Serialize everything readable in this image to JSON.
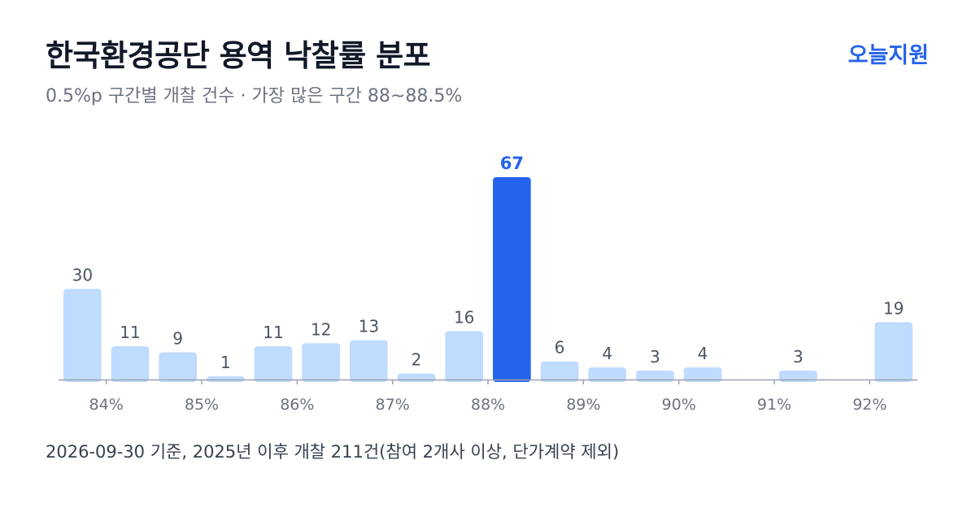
{
  "header": {
    "title": "한국환경공단 용역 낙찰률 분포",
    "brand": "오늘지원",
    "subtitle": "0.5%p 구간별 개찰 건수 · 가장 많은 구간 88~88.5%"
  },
  "footnote": "2026-09-30 기준, 2025년 이후 개찰 211건(참여 2개사 이상, 단가계약 제외)",
  "colors": {
    "bar": "#bfdbfe",
    "highlight": "#2563eb",
    "brand": "#2563eb",
    "axis": "#9ca3af",
    "tick_text": "#6b7280",
    "value_text": "#4b5563"
  },
  "chart_data": {
    "type": "bar",
    "bins": [
      {
        "start": 83.5,
        "value": 30
      },
      {
        "start": 84.0,
        "value": 11
      },
      {
        "start": 84.5,
        "value": 9
      },
      {
        "start": 85.0,
        "value": 1
      },
      {
        "start": 85.5,
        "value": 11
      },
      {
        "start": 86.0,
        "value": 12
      },
      {
        "start": 86.5,
        "value": 13
      },
      {
        "start": 87.0,
        "value": 2
      },
      {
        "start": 87.5,
        "value": 16
      },
      {
        "start": 88.0,
        "value": 67,
        "highlight": true
      },
      {
        "start": 88.5,
        "value": 6
      },
      {
        "start": 89.0,
        "value": 4
      },
      {
        "start": 89.5,
        "value": 3
      },
      {
        "start": 90.0,
        "value": 4
      },
      {
        "start": 90.5,
        "value": 0
      },
      {
        "start": 91.0,
        "value": 3
      },
      {
        "start": 91.5,
        "value": 0
      },
      {
        "start": 92.0,
        "value": 19
      }
    ],
    "bin_width": 0.5,
    "x_ticks": [
      84,
      85,
      86,
      87,
      88,
      89,
      90,
      91,
      92
    ],
    "x_tick_suffix": "%",
    "xlim": [
      83.5,
      92.5
    ],
    "ylim": [
      0,
      67
    ],
    "grid": false,
    "legend": false
  }
}
